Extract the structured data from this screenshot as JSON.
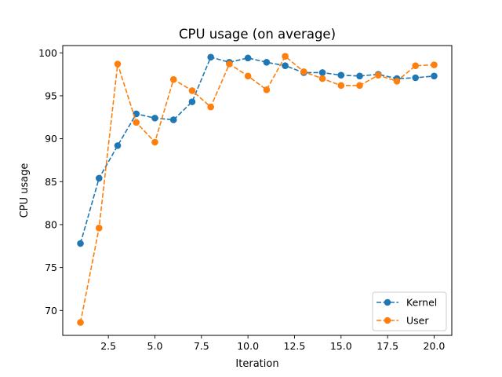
{
  "chart_data": {
    "type": "line",
    "title": "CPU usage (on average)",
    "xlabel": "Iteration",
    "ylabel": "CPU usage",
    "xlim": [
      0.05,
      20.95
    ],
    "ylim": [
      67.1,
      100.85
    ],
    "xticks": [
      2.5,
      5.0,
      7.5,
      10.0,
      12.5,
      15.0,
      17.5,
      20.0
    ],
    "xtick_labels": [
      "2.5",
      "5.0",
      "7.5",
      "10.0",
      "12.5",
      "15.0",
      "17.5",
      "20.0"
    ],
    "yticks": [
      70,
      75,
      80,
      85,
      90,
      95,
      100
    ],
    "ytick_labels": [
      "70",
      "75",
      "80",
      "85",
      "90",
      "95",
      "100"
    ],
    "grid": false,
    "legend_position": "lower-right",
    "x": [
      1,
      2,
      3,
      4,
      5,
      6,
      7,
      8,
      9,
      10,
      11,
      12,
      13,
      14,
      15,
      16,
      17,
      18,
      19,
      20
    ],
    "series": [
      {
        "name": "Kernel",
        "color": "#1f77b4",
        "style": "dashed",
        "marker": "circle",
        "values": [
          77.8,
          85.4,
          89.2,
          92.9,
          92.4,
          92.2,
          94.3,
          99.5,
          98.9,
          99.4,
          98.9,
          98.5,
          97.7,
          97.7,
          97.4,
          97.3,
          97.5,
          97.0,
          97.1,
          97.3
        ]
      },
      {
        "name": "User",
        "color": "#ff7f0e",
        "style": "dashed",
        "marker": "circle",
        "values": [
          68.6,
          79.6,
          98.7,
          91.9,
          89.6,
          96.9,
          95.6,
          93.7,
          98.7,
          97.3,
          95.7,
          99.6,
          97.8,
          97.0,
          96.2,
          96.2,
          97.4,
          96.7,
          98.5,
          98.6
        ]
      }
    ]
  }
}
